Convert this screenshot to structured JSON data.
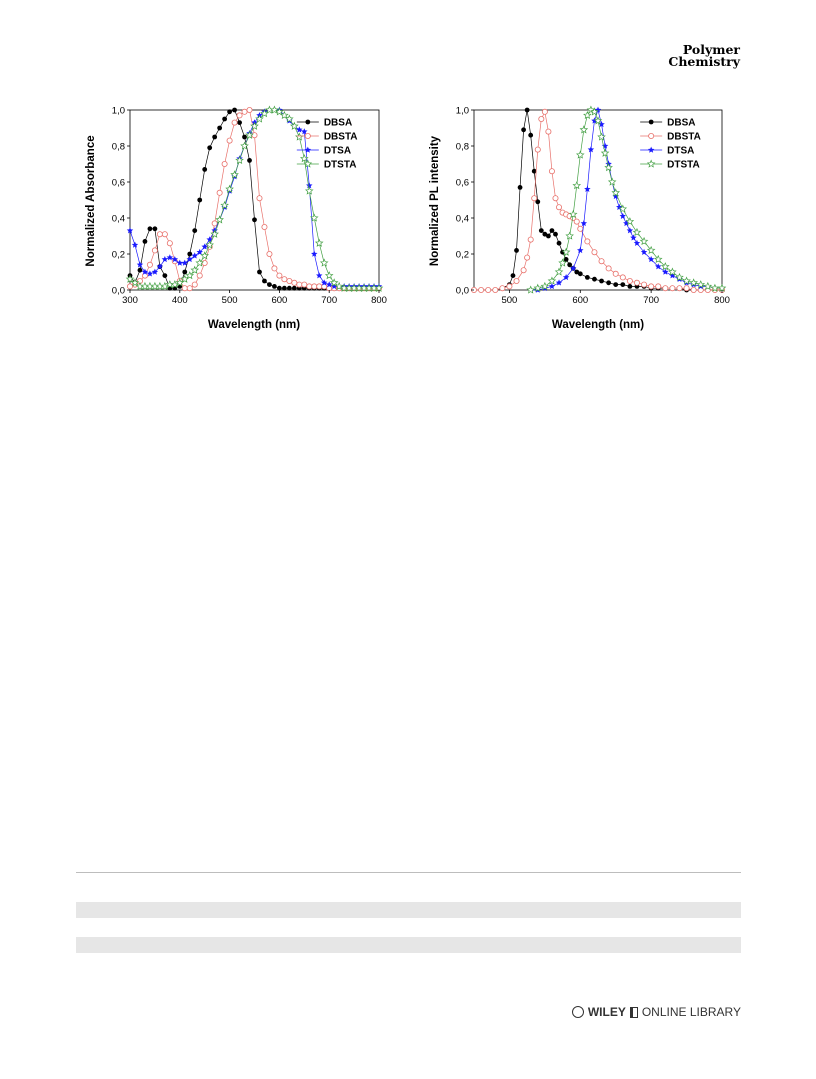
{
  "header": {
    "journal_line1": "Polymer",
    "journal_line2": "Chemistry"
  },
  "footer": {
    "brand": "WILEY",
    "library": "ONLINE LIBRARY"
  },
  "series_styles": {
    "DBSA": {
      "color": "#000000",
      "marker": "filled-circle"
    },
    "DBSTA": {
      "color": "#e8716b",
      "marker": "open-circle"
    },
    "DTSA": {
      "color": "#1a1aff",
      "marker": "filled-star"
    },
    "DTSTA": {
      "color": "#44a044",
      "marker": "open-star"
    }
  },
  "chart_data": [
    {
      "type": "line",
      "xlabel": "Wavelength (nm)",
      "ylabel": "Normalized Absorbance",
      "xlim": [
        300,
        800
      ],
      "ylim": [
        0,
        1.0
      ],
      "xticks": [
        "300",
        "400",
        "500",
        "600",
        "700",
        "800"
      ],
      "yticks": [
        "0,0",
        "0,2",
        "0,4",
        "0,6",
        "0,8",
        "1,0"
      ],
      "legend_position": "top-right",
      "series": [
        {
          "name": "DBSA",
          "x": [
            300,
            310,
            320,
            330,
            340,
            350,
            360,
            370,
            380,
            390,
            400,
            410,
            420,
            430,
            440,
            450,
            460,
            470,
            480,
            490,
            500,
            510,
            520,
            530,
            540,
            550,
            560,
            570,
            580,
            590,
            600,
            610,
            620,
            630,
            640,
            650,
            660,
            670,
            680,
            690,
            700,
            710,
            720,
            730,
            740,
            750,
            760,
            770,
            780,
            790,
            800
          ],
          "y": [
            0.08,
            0.04,
            0.11,
            0.27,
            0.34,
            0.34,
            0.13,
            0.08,
            0.01,
            0.01,
            0.02,
            0.1,
            0.2,
            0.33,
            0.5,
            0.67,
            0.79,
            0.85,
            0.9,
            0.95,
            0.99,
            1.0,
            0.93,
            0.85,
            0.72,
            0.39,
            0.1,
            0.05,
            0.03,
            0.02,
            0.01,
            0.01,
            0.01,
            0.01,
            0.01,
            0.01,
            0.01,
            0.01,
            0.01,
            0.01,
            0.01,
            0.01,
            0.01,
            0.01,
            0.01,
            0.01,
            0.01,
            0.01,
            0.01,
            0.01,
            0.01
          ]
        },
        {
          "name": "DBSTA",
          "x": [
            300,
            310,
            320,
            330,
            340,
            350,
            360,
            370,
            380,
            390,
            400,
            410,
            420,
            430,
            440,
            450,
            460,
            470,
            480,
            490,
            500,
            510,
            520,
            530,
            540,
            550,
            560,
            570,
            580,
            590,
            600,
            610,
            620,
            630,
            640,
            650,
            660,
            670,
            680,
            690,
            700,
            710,
            720,
            730,
            740,
            750,
            760,
            770,
            780,
            790,
            800
          ],
          "y": [
            0.02,
            0.03,
            0.05,
            0.08,
            0.14,
            0.22,
            0.31,
            0.31,
            0.26,
            0.16,
            0.05,
            0.01,
            0.01,
            0.03,
            0.08,
            0.15,
            0.24,
            0.37,
            0.54,
            0.7,
            0.83,
            0.93,
            0.97,
            0.99,
            1.0,
            0.86,
            0.51,
            0.35,
            0.2,
            0.12,
            0.08,
            0.06,
            0.05,
            0.04,
            0.03,
            0.03,
            0.02,
            0.02,
            0.02,
            0.02,
            0.01,
            0.01,
            0.01,
            0.01,
            0.01,
            0.01,
            0.01,
            0.01,
            0.01,
            0.01,
            0.01
          ]
        },
        {
          "name": "DTSA",
          "x": [
            300,
            310,
            320,
            330,
            340,
            350,
            360,
            370,
            380,
            390,
            400,
            410,
            420,
            430,
            440,
            450,
            460,
            470,
            480,
            490,
            500,
            510,
            520,
            530,
            540,
            550,
            560,
            570,
            580,
            590,
            600,
            610,
            620,
            630,
            640,
            650,
            660,
            670,
            680,
            690,
            700,
            710,
            720,
            730,
            740,
            750,
            760,
            770,
            780,
            790,
            800
          ],
          "y": [
            0.33,
            0.25,
            0.14,
            0.1,
            0.09,
            0.1,
            0.13,
            0.17,
            0.18,
            0.17,
            0.15,
            0.15,
            0.17,
            0.19,
            0.21,
            0.24,
            0.28,
            0.33,
            0.39,
            0.46,
            0.55,
            0.63,
            0.73,
            0.8,
            0.87,
            0.93,
            0.97,
            0.99,
            1.0,
            1.0,
            1.0,
            0.97,
            0.94,
            0.91,
            0.89,
            0.88,
            0.58,
            0.2,
            0.08,
            0.04,
            0.03,
            0.02,
            0.02,
            0.02,
            0.02,
            0.02,
            0.02,
            0.02,
            0.02,
            0.02,
            0.02
          ]
        },
        {
          "name": "DTSTA",
          "x": [
            300,
            310,
            320,
            330,
            340,
            350,
            360,
            370,
            380,
            390,
            400,
            410,
            420,
            430,
            440,
            450,
            460,
            470,
            480,
            490,
            500,
            510,
            520,
            530,
            540,
            550,
            560,
            570,
            580,
            590,
            600,
            610,
            620,
            630,
            640,
            650,
            660,
            670,
            680,
            690,
            700,
            710,
            720,
            730,
            740,
            750,
            760,
            770,
            780,
            790,
            800
          ],
          "y": [
            0.06,
            0.04,
            0.02,
            0.02,
            0.02,
            0.02,
            0.02,
            0.02,
            0.03,
            0.03,
            0.04,
            0.06,
            0.08,
            0.11,
            0.15,
            0.19,
            0.25,
            0.31,
            0.39,
            0.47,
            0.56,
            0.64,
            0.72,
            0.8,
            0.86,
            0.91,
            0.95,
            0.98,
            1.0,
            1.0,
            0.99,
            0.97,
            0.95,
            0.91,
            0.85,
            0.73,
            0.55,
            0.4,
            0.26,
            0.15,
            0.08,
            0.04,
            0.02,
            0.01,
            0.01,
            0.01,
            0.01,
            0.01,
            0.01,
            0.01,
            0.01
          ]
        }
      ]
    },
    {
      "type": "line",
      "xlabel": "Wavelength (nm)",
      "ylabel": "Normalized PL intensity",
      "xlim": [
        450,
        800
      ],
      "ylim": [
        0,
        1.0
      ],
      "xticks": [
        "500",
        "600",
        "700",
        "800"
      ],
      "yticks": [
        "0,0",
        "0,2",
        "0,4",
        "0,6",
        "0,8",
        "1,0"
      ],
      "legend_position": "top-right",
      "series": [
        {
          "name": "DBSA",
          "x": [
            460,
            470,
            480,
            490,
            500,
            505,
            510,
            515,
            520,
            525,
            530,
            535,
            540,
            545,
            550,
            555,
            560,
            565,
            570,
            575,
            580,
            585,
            590,
            595,
            600,
            610,
            620,
            630,
            640,
            650,
            660,
            670,
            680,
            690,
            700,
            710,
            720,
            730,
            740,
            750,
            760,
            770,
            780,
            790,
            800
          ],
          "y": [
            0.0,
            0.0,
            0.0,
            0.01,
            0.03,
            0.08,
            0.22,
            0.57,
            0.89,
            1.0,
            0.86,
            0.66,
            0.49,
            0.33,
            0.31,
            0.3,
            0.33,
            0.31,
            0.26,
            0.21,
            0.17,
            0.14,
            0.12,
            0.1,
            0.09,
            0.07,
            0.06,
            0.05,
            0.04,
            0.03,
            0.03,
            0.02,
            0.02,
            0.02,
            0.01,
            0.01,
            0.01,
            0.01,
            0.01,
            0.0,
            0.0,
            0.0,
            0.0,
            0.0,
            0.0
          ]
        },
        {
          "name": "DBSTA",
          "x": [
            450,
            460,
            470,
            480,
            490,
            500,
            510,
            520,
            525,
            530,
            535,
            540,
            545,
            550,
            555,
            560,
            565,
            570,
            575,
            580,
            585,
            590,
            595,
            600,
            610,
            620,
            630,
            640,
            650,
            660,
            670,
            680,
            690,
            700,
            710,
            720,
            730,
            740,
            750,
            760,
            770,
            780,
            790,
            800
          ],
          "y": [
            0.0,
            0.0,
            0.0,
            0.0,
            0.01,
            0.02,
            0.05,
            0.11,
            0.18,
            0.28,
            0.51,
            0.78,
            0.95,
            0.99,
            0.88,
            0.66,
            0.51,
            0.46,
            0.43,
            0.42,
            0.41,
            0.4,
            0.38,
            0.34,
            0.27,
            0.21,
            0.16,
            0.12,
            0.09,
            0.07,
            0.05,
            0.04,
            0.03,
            0.02,
            0.02,
            0.01,
            0.01,
            0.01,
            0.01,
            0.0,
            0.0,
            0.0,
            0.0,
            0.0
          ]
        },
        {
          "name": "DTSA",
          "x": [
            530,
            540,
            550,
            560,
            570,
            580,
            590,
            600,
            605,
            610,
            615,
            620,
            625,
            630,
            635,
            640,
            645,
            650,
            655,
            660,
            665,
            670,
            675,
            680,
            690,
            700,
            710,
            720,
            730,
            740,
            750,
            760,
            770,
            780,
            790,
            800
          ],
          "y": [
            0.0,
            0.0,
            0.01,
            0.02,
            0.04,
            0.07,
            0.12,
            0.22,
            0.37,
            0.56,
            0.78,
            0.94,
            1.0,
            0.92,
            0.8,
            0.7,
            0.6,
            0.52,
            0.46,
            0.41,
            0.37,
            0.33,
            0.29,
            0.26,
            0.21,
            0.17,
            0.13,
            0.1,
            0.08,
            0.06,
            0.04,
            0.03,
            0.02,
            0.02,
            0.01,
            0.01
          ]
        },
        {
          "name": "DTSTA",
          "x": [
            530,
            540,
            550,
            560,
            570,
            575,
            580,
            585,
            590,
            595,
            600,
            605,
            610,
            615,
            620,
            625,
            630,
            635,
            640,
            645,
            650,
            660,
            670,
            680,
            690,
            700,
            710,
            720,
            730,
            740,
            750,
            760,
            770,
            780,
            790,
            800
          ],
          "y": [
            0.0,
            0.01,
            0.02,
            0.05,
            0.1,
            0.15,
            0.21,
            0.3,
            0.42,
            0.58,
            0.75,
            0.89,
            0.97,
            1.0,
            0.99,
            0.94,
            0.85,
            0.76,
            0.68,
            0.6,
            0.54,
            0.45,
            0.38,
            0.32,
            0.27,
            0.22,
            0.17,
            0.13,
            0.1,
            0.07,
            0.05,
            0.04,
            0.03,
            0.02,
            0.01,
            0.01
          ]
        }
      ]
    }
  ]
}
